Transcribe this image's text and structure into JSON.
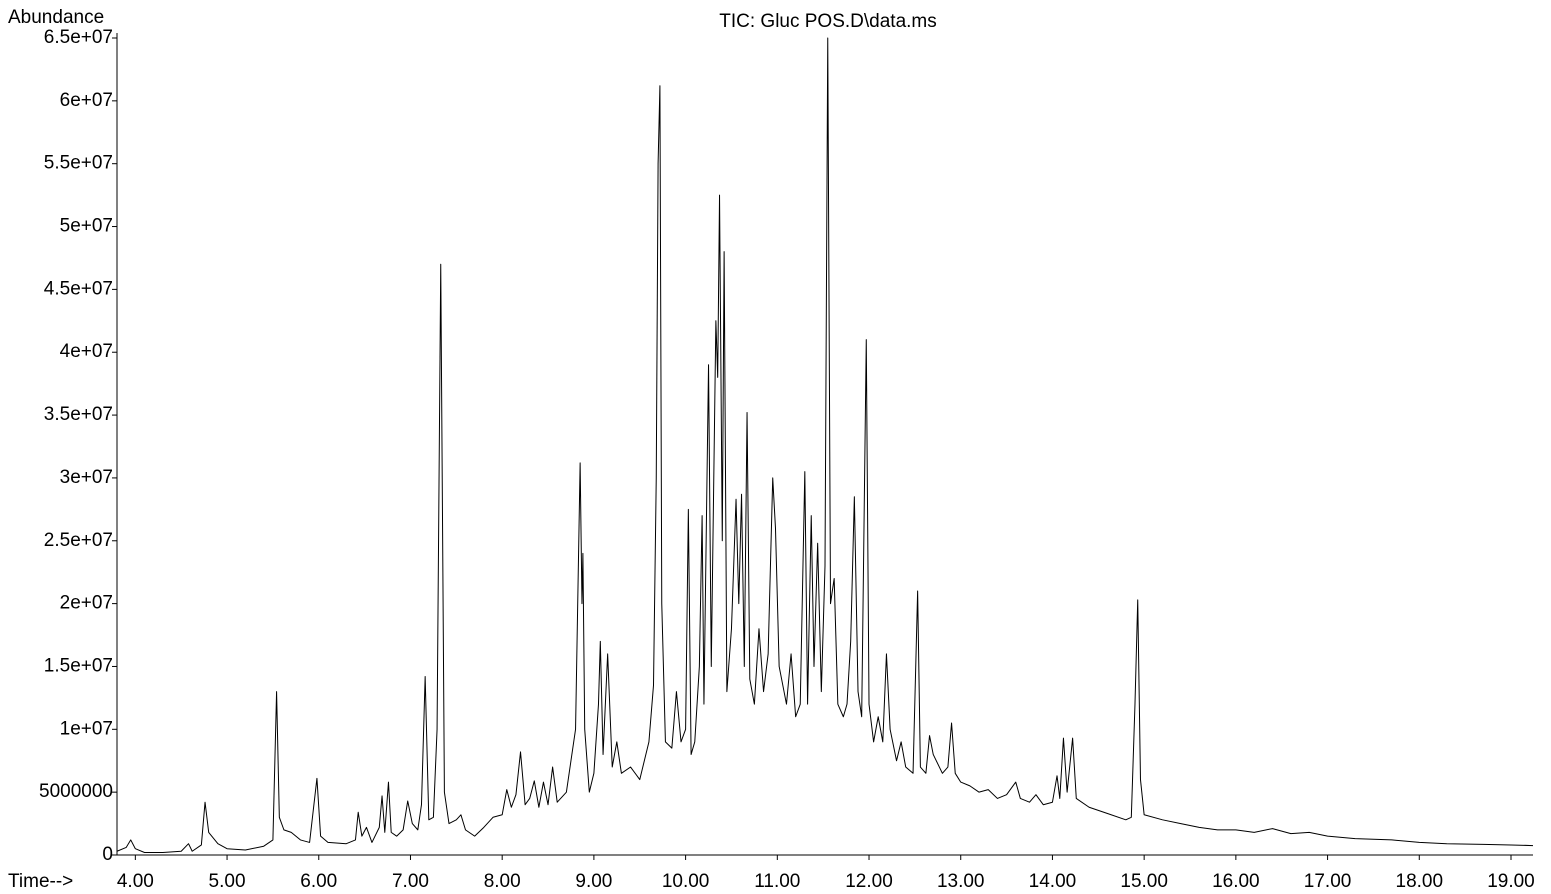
{
  "chart_data": {
    "type": "line",
    "title": "TIC: Gluc POS.D\\data.ms",
    "y_label": "Abundance",
    "x_label": "Time-->",
    "xlim": [
      3.8,
      19.24
    ],
    "ylim": [
      0,
      65000000
    ],
    "xticks": [
      {
        "value": 4,
        "label": "4.00"
      },
      {
        "value": 5,
        "label": "5.00"
      },
      {
        "value": 6,
        "label": "6.00"
      },
      {
        "value": 7,
        "label": "7.00"
      },
      {
        "value": 8,
        "label": "8.00"
      },
      {
        "value": 9,
        "label": "9.00"
      },
      {
        "value": 10,
        "label": "10.00"
      },
      {
        "value": 11,
        "label": "11.00"
      },
      {
        "value": 12,
        "label": "12.00"
      },
      {
        "value": 13,
        "label": "13.00"
      },
      {
        "value": 14,
        "label": "14.00"
      },
      {
        "value": 15,
        "label": "15.00"
      },
      {
        "value": 16,
        "label": "16.00"
      },
      {
        "value": 17,
        "label": "17.00"
      },
      {
        "value": 18,
        "label": "18.00"
      },
      {
        "value": 19,
        "label": "19.00"
      }
    ],
    "yticks": [
      0,
      5000000,
      {
        "value": 10000000,
        "label": "1e+07"
      },
      {
        "value": 15000000,
        "label": "1.5e+07"
      },
      {
        "value": 20000000,
        "label": "2e+07"
      },
      {
        "value": 25000000,
        "label": "2.5e+07"
      },
      {
        "value": 30000000,
        "label": "3e+07"
      },
      {
        "value": 35000000,
        "label": "3.5e+07"
      },
      {
        "value": 40000000,
        "label": "4e+07"
      },
      {
        "value": 45000000,
        "label": "4.5e+07"
      },
      {
        "value": 50000000,
        "label": "5e+07"
      },
      {
        "value": 55000000,
        "label": "5.5e+07"
      },
      {
        "value": 60000000,
        "label": "6e+07"
      },
      {
        "value": 65000000,
        "label": "6.5e+07"
      }
    ],
    "x": [
      3.8,
      3.9,
      3.95,
      4.0,
      4.1,
      4.3,
      4.5,
      4.58,
      4.62,
      4.72,
      4.76,
      4.8,
      4.9,
      5.0,
      5.2,
      5.4,
      5.5,
      5.54,
      5.57,
      5.62,
      5.7,
      5.8,
      5.9,
      5.98,
      6.02,
      6.1,
      6.3,
      6.4,
      6.43,
      6.47,
      6.52,
      6.58,
      6.66,
      6.69,
      6.72,
      6.76,
      6.79,
      6.85,
      6.92,
      6.97,
      7.02,
      7.08,
      7.12,
      7.16,
      7.2,
      7.25,
      7.29,
      7.33,
      7.37,
      7.42,
      7.5,
      7.55,
      7.6,
      7.7,
      7.8,
      7.9,
      8.0,
      8.05,
      8.1,
      8.15,
      8.2,
      8.25,
      8.3,
      8.35,
      8.4,
      8.45,
      8.5,
      8.55,
      8.6,
      8.7,
      8.75,
      8.8,
      8.85,
      8.87,
      8.88,
      8.9,
      8.95,
      9.0,
      9.05,
      9.07,
      9.1,
      9.15,
      9.2,
      9.25,
      9.3,
      9.4,
      9.5,
      9.55,
      9.6,
      9.65,
      9.68,
      9.7,
      9.72,
      9.74,
      9.78,
      9.85,
      9.9,
      9.95,
      10.0,
      10.03,
      10.06,
      10.1,
      10.15,
      10.18,
      10.2,
      10.25,
      10.28,
      10.33,
      10.35,
      10.37,
      10.4,
      10.42,
      10.45,
      10.5,
      10.55,
      10.58,
      10.61,
      10.64,
      10.67,
      10.7,
      10.75,
      10.8,
      10.85,
      10.9,
      10.95,
      10.98,
      11.02,
      11.1,
      11.15,
      11.2,
      11.25,
      11.3,
      11.33,
      11.37,
      11.4,
      11.44,
      11.48,
      11.52,
      11.55,
      11.58,
      11.62,
      11.66,
      11.72,
      11.76,
      11.8,
      11.84,
      11.88,
      11.92,
      11.97,
      12.0,
      12.05,
      12.1,
      12.15,
      12.19,
      12.23,
      12.3,
      12.35,
      12.4,
      12.48,
      12.53,
      12.56,
      12.62,
      12.66,
      12.7,
      12.8,
      12.86,
      12.9,
      12.94,
      13.0,
      13.1,
      13.2,
      13.3,
      13.4,
      13.5,
      13.6,
      13.65,
      13.75,
      13.82,
      13.9,
      14.0,
      14.05,
      14.08,
      14.12,
      14.16,
      14.22,
      14.26,
      14.4,
      14.6,
      14.8,
      14.86,
      14.9,
      14.93,
      14.96,
      15.0,
      15.2,
      15.4,
      15.6,
      15.8,
      16.0,
      16.2,
      16.4,
      16.6,
      16.8,
      17.0,
      17.3,
      17.7,
      18.0,
      18.3,
      18.7,
      19.0,
      19.24
    ],
    "series": [
      {
        "color": "#000000",
        "values": [
          300000,
          600000,
          1200000,
          500000,
          200000,
          200000,
          300000,
          900000,
          300000,
          800000,
          4200000,
          1800000,
          900000,
          500000,
          400000,
          700000,
          1200000,
          13000000,
          3000000,
          2000000,
          1800000,
          1200000,
          1000000,
          6100000,
          1500000,
          1000000,
          900000,
          1200000,
          3400000,
          1500000,
          2200000,
          1000000,
          2200000,
          4700000,
          1800000,
          5800000,
          1800000,
          1500000,
          2000000,
          4300000,
          2500000,
          2000000,
          4000000,
          14200000,
          2800000,
          3000000,
          10000000,
          47000000,
          5000000,
          2500000,
          2800000,
          3200000,
          2000000,
          1500000,
          2200000,
          3000000,
          3200000,
          5200000,
          3800000,
          4800000,
          8200000,
          4000000,
          4500000,
          5900000,
          3800000,
          5800000,
          4000000,
          7000000,
          4200000,
          5000000,
          7500000,
          10000000,
          31200000,
          20000000,
          24000000,
          10000000,
          5000000,
          6500000,
          12000000,
          17000000,
          8000000,
          16000000,
          7000000,
          9000000,
          6500000,
          7000000,
          6000000,
          7500000,
          9000000,
          13500000,
          30000000,
          55000000,
          61200000,
          20000000,
          9000000,
          8500000,
          13000000,
          9000000,
          10000000,
          27500000,
          8000000,
          9000000,
          15000000,
          27000000,
          12000000,
          39000000,
          15000000,
          42500000,
          38000000,
          52500000,
          25000000,
          48000000,
          13000000,
          18000000,
          28300000,
          20000000,
          28700000,
          15000000,
          35200000,
          14000000,
          12000000,
          18000000,
          13000000,
          16000000,
          30000000,
          26000000,
          15000000,
          12000000,
          16000000,
          11000000,
          12000000,
          30500000,
          12000000,
          27000000,
          15000000,
          24800000,
          13000000,
          23000000,
          65000000,
          20000000,
          22000000,
          12000000,
          11000000,
          12000000,
          17000000,
          28500000,
          13000000,
          11000000,
          41000000,
          12000000,
          9000000,
          11000000,
          9000000,
          16000000,
          10000000,
          7500000,
          9000000,
          7000000,
          6500000,
          21000000,
          7000000,
          6500000,
          9500000,
          8000000,
          6500000,
          7000000,
          10500000,
          6500000,
          5800000,
          5500000,
          5000000,
          5200000,
          4500000,
          4800000,
          5800000,
          4500000,
          4200000,
          4800000,
          4000000,
          4200000,
          6300000,
          4500000,
          9300000,
          5000000,
          9300000,
          4500000,
          3800000,
          3300000,
          2800000,
          3000000,
          12000000,
          20300000,
          6000000,
          3200000,
          2800000,
          2500000,
          2200000,
          2000000,
          2000000,
          1800000,
          2100000,
          1700000,
          1800000,
          1500000,
          1300000,
          1200000,
          1000000,
          900000,
          850000,
          800000,
          750000
        ]
      }
    ]
  }
}
